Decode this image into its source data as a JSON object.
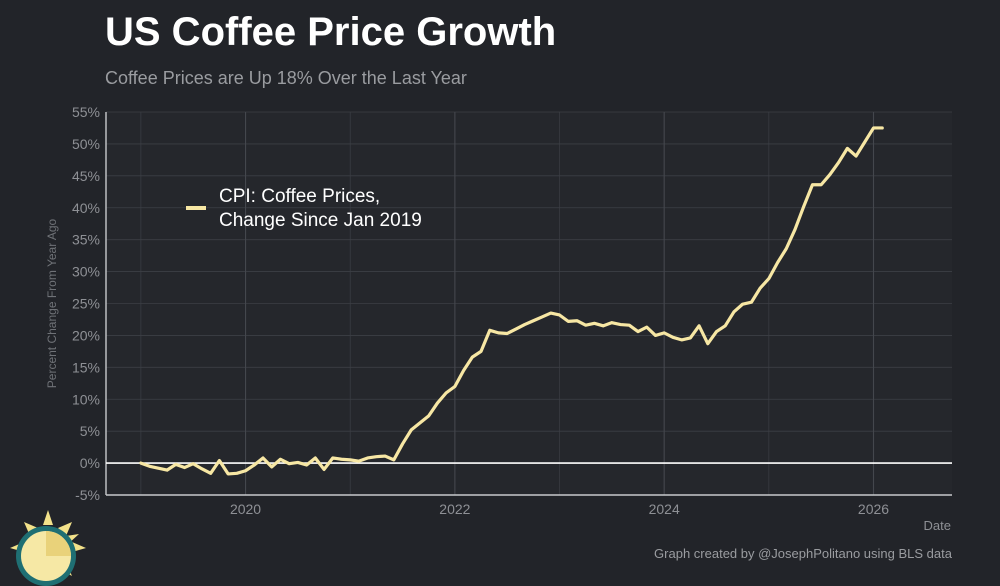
{
  "header": {
    "title": "US Coffee Price Growth",
    "subtitle": "Coffee Prices are Up 18% Over the Last Year"
  },
  "footer": {
    "credit": "Graph created by @JosephPolitano using BLS data",
    "logo_icon": "sun-logo-icon"
  },
  "colors": {
    "background": "#222429",
    "grid": "#3c3f45",
    "line": "#f7e7a4",
    "zero_line": "#ffffff",
    "axis_text": "#8e9095"
  },
  "chart_data": {
    "type": "line",
    "xlabel": "Date",
    "ylabel": "Percent Change From Year Ago",
    "xlim": [
      "2018-09-01",
      "2026-10-01"
    ],
    "ylim": [
      -5,
      55
    ],
    "y_ticks": [
      -5,
      0,
      5,
      10,
      15,
      20,
      25,
      30,
      35,
      40,
      45,
      50,
      55
    ],
    "y_tick_labels": [
      "-5%",
      "0%",
      "5%",
      "10%",
      "15%",
      "20%",
      "25%",
      "30%",
      "35%",
      "40%",
      "45%",
      "50%",
      "55%"
    ],
    "x_ticks": [
      "2020-01-01",
      "2022-01-01",
      "2024-01-01",
      "2026-01-01"
    ],
    "x_tick_labels": [
      "2020",
      "2022",
      "2024",
      "2026"
    ],
    "grid": true,
    "legend_position": "top-left",
    "series": [
      {
        "name": "CPI: Coffee Prices, Change Since Jan 2019",
        "legend_lines": [
          "CPI: Coffee Prices,",
          "Change Since Jan 2019"
        ],
        "x": [
          "2019-01",
          "2019-02",
          "2019-03",
          "2019-04",
          "2019-05",
          "2019-06",
          "2019-07",
          "2019-08",
          "2019-09",
          "2019-10",
          "2019-11",
          "2019-12",
          "2020-01",
          "2020-02",
          "2020-03",
          "2020-04",
          "2020-05",
          "2020-06",
          "2020-07",
          "2020-08",
          "2020-09",
          "2020-10",
          "2020-11",
          "2020-12",
          "2021-01",
          "2021-02",
          "2021-03",
          "2021-04",
          "2021-05",
          "2021-06",
          "2021-07",
          "2021-08",
          "2021-09",
          "2021-10",
          "2021-11",
          "2021-12",
          "2022-01",
          "2022-02",
          "2022-03",
          "2022-04",
          "2022-05",
          "2022-06",
          "2022-07",
          "2022-08",
          "2022-09",
          "2022-10",
          "2022-11",
          "2022-12",
          "2023-01",
          "2023-02",
          "2023-03",
          "2023-04",
          "2023-05",
          "2023-06",
          "2023-07",
          "2023-08",
          "2023-09",
          "2023-10",
          "2023-11",
          "2023-12",
          "2024-01",
          "2024-02",
          "2024-03",
          "2024-04",
          "2024-05",
          "2024-06",
          "2024-07",
          "2024-08",
          "2024-09",
          "2024-10",
          "2024-11",
          "2024-12",
          "2025-01",
          "2025-02",
          "2025-03",
          "2025-04",
          "2025-05",
          "2025-06",
          "2025-07",
          "2025-08",
          "2025-09",
          "2025-10",
          "2025-11",
          "2025-12",
          "2026-01",
          "2026-02"
        ],
        "y": [
          0.0,
          -0.5,
          -0.8,
          -1.1,
          -0.2,
          -0.7,
          -0.1,
          -0.9,
          -1.6,
          0.4,
          -1.7,
          -1.6,
          -1.2,
          -0.3,
          0.8,
          -0.6,
          0.6,
          -0.1,
          0.1,
          -0.3,
          0.8,
          -1.0,
          0.8,
          0.6,
          0.5,
          0.3,
          0.8,
          1.0,
          1.1,
          0.5,
          3.0,
          5.2,
          6.3,
          7.4,
          9.4,
          11.0,
          12.0,
          14.5,
          16.6,
          17.5,
          20.8,
          20.4,
          20.3,
          21.0,
          21.7,
          22.3,
          22.9,
          23.5,
          23.2,
          22.2,
          22.3,
          21.6,
          21.9,
          21.5,
          22.0,
          21.7,
          21.6,
          20.6,
          21.3,
          20.0,
          20.4,
          19.7,
          19.3,
          19.6,
          21.5,
          18.7,
          20.6,
          21.5,
          23.7,
          24.9,
          25.2,
          27.4,
          28.9,
          31.4,
          33.6,
          36.6,
          40.2,
          43.6,
          43.6,
          45.2,
          47.1,
          49.3,
          48.1,
          50.3,
          52.5,
          52.5
        ]
      }
    ]
  }
}
